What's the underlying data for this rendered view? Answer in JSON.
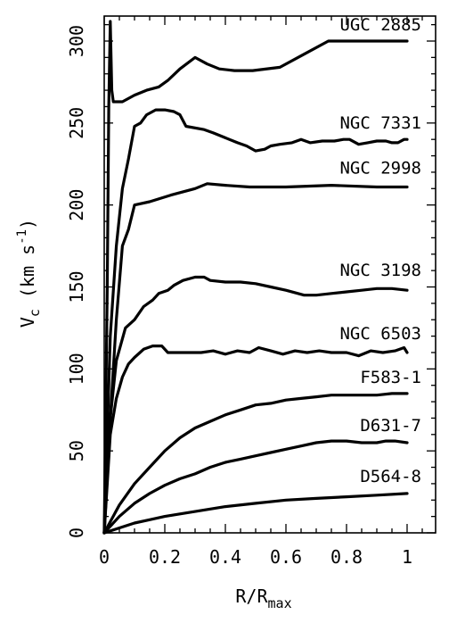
{
  "chart_data": {
    "type": "line",
    "xlabel": {
      "main": "R/R",
      "sub": "max"
    },
    "ylabel": {
      "main": "V",
      "sub": "c",
      "rest": " (km s",
      "sup": "-1",
      "close": ")"
    },
    "xlim": [
      0,
      1.1
    ],
    "ylim": [
      0,
      320
    ],
    "xticks": [
      0,
      0.2,
      0.4,
      0.6,
      0.8,
      1
    ],
    "xtick_labels": [
      "0",
      "0.2",
      "0.4",
      "0.6",
      "0.8",
      "1"
    ],
    "yticks": [
      0,
      50,
      100,
      150,
      200,
      250,
      300
    ],
    "ytick_labels": [
      "0",
      "50",
      "100",
      "150",
      "200",
      "250",
      "300"
    ],
    "series": [
      {
        "name": "UGC 2885",
        "x": [
          0,
          0.01,
          0.015,
          0.02,
          0.025,
          0.03,
          0.04,
          0.06,
          0.1,
          0.14,
          0.18,
          0.21,
          0.25,
          0.3,
          0.34,
          0.38,
          0.43,
          0.49,
          0.58,
          0.66,
          0.74,
          0.85,
          1.0
        ],
        "y": [
          0,
          150,
          260,
          312,
          270,
          263,
          263,
          263,
          267,
          270,
          272,
          276,
          283,
          290,
          286,
          283,
          282,
          282,
          284,
          292,
          300,
          300,
          300
        ]
      },
      {
        "name": "NGC 7331",
        "x": [
          0,
          0.02,
          0.04,
          0.06,
          0.08,
          0.1,
          0.12,
          0.14,
          0.17,
          0.2,
          0.23,
          0.25,
          0.27,
          0.33,
          0.36,
          0.4,
          0.44,
          0.47,
          0.5,
          0.53,
          0.55,
          0.58,
          0.62,
          0.65,
          0.68,
          0.72,
          0.76,
          0.79,
          0.81,
          0.84,
          0.87,
          0.9,
          0.93,
          0.95,
          0.97,
          0.99,
          1.0
        ],
        "y": [
          0,
          120,
          175,
          210,
          228,
          248,
          250,
          255,
          258,
          258,
          257,
          255,
          248,
          246,
          244,
          241,
          238,
          236,
          233,
          234,
          236,
          237,
          238,
          240,
          238,
          239,
          239,
          240,
          240,
          237,
          238,
          239,
          239,
          238,
          238,
          240,
          240
        ]
      },
      {
        "name": "NGC 2998",
        "x": [
          0,
          0.02,
          0.04,
          0.06,
          0.08,
          0.1,
          0.15,
          0.22,
          0.3,
          0.34,
          0.4,
          0.48,
          0.6,
          0.75,
          0.9,
          1.0
        ],
        "y": [
          0,
          70,
          130,
          175,
          185,
          200,
          202,
          206,
          210,
          213,
          212,
          211,
          211,
          212,
          211,
          211
        ]
      },
      {
        "name": "NGC 3198",
        "x": [
          0,
          0.02,
          0.04,
          0.07,
          0.1,
          0.13,
          0.16,
          0.18,
          0.21,
          0.23,
          0.26,
          0.3,
          0.33,
          0.35,
          0.4,
          0.45,
          0.5,
          0.55,
          0.6,
          0.66,
          0.7,
          0.75,
          0.8,
          0.85,
          0.9,
          0.95,
          1.0
        ],
        "y": [
          0,
          70,
          105,
          125,
          130,
          138,
          142,
          146,
          148,
          151,
          154,
          156,
          156,
          154,
          153,
          153,
          152,
          150,
          148,
          145,
          145,
          146,
          147,
          148,
          149,
          149,
          148
        ]
      },
      {
        "name": "NGC 6503",
        "x": [
          0,
          0.02,
          0.04,
          0.06,
          0.08,
          0.1,
          0.13,
          0.16,
          0.19,
          0.21,
          0.23,
          0.27,
          0.32,
          0.36,
          0.4,
          0.44,
          0.48,
          0.51,
          0.55,
          0.59,
          0.63,
          0.67,
          0.71,
          0.75,
          0.8,
          0.84,
          0.88,
          0.92,
          0.96,
          0.99,
          1.0
        ],
        "y": [
          0,
          60,
          82,
          95,
          103,
          107,
          112,
          114,
          114,
          110,
          110,
          110,
          110,
          111,
          109,
          111,
          110,
          113,
          111,
          109,
          111,
          110,
          111,
          110,
          110,
          108,
          111,
          110,
          111,
          113,
          110
        ]
      },
      {
        "name": "F583-1",
        "x": [
          0,
          0.05,
          0.1,
          0.15,
          0.2,
          0.25,
          0.3,
          0.35,
          0.4,
          0.45,
          0.5,
          0.55,
          0.6,
          0.65,
          0.7,
          0.75,
          0.8,
          0.85,
          0.9,
          0.95,
          1.0
        ],
        "y": [
          0,
          17,
          30,
          40,
          50,
          58,
          64,
          68,
          72,
          75,
          78,
          79,
          81,
          82,
          83,
          84,
          84,
          84,
          84,
          85,
          85
        ]
      },
      {
        "name": "D631-7",
        "x": [
          0,
          0.05,
          0.1,
          0.15,
          0.2,
          0.25,
          0.3,
          0.35,
          0.4,
          0.45,
          0.5,
          0.55,
          0.6,
          0.65,
          0.7,
          0.75,
          0.8,
          0.85,
          0.88,
          0.9,
          0.93,
          0.96,
          1.0
        ],
        "y": [
          0,
          10,
          18,
          24,
          29,
          33,
          36,
          40,
          43,
          45,
          47,
          49,
          51,
          53,
          55,
          56,
          56,
          55,
          55,
          55,
          56,
          56,
          55
        ]
      },
      {
        "name": "D564-8",
        "x": [
          0,
          0.05,
          0.1,
          0.15,
          0.2,
          0.3,
          0.4,
          0.5,
          0.6,
          0.7,
          0.8,
          0.9,
          1.0
        ],
        "y": [
          0,
          3,
          6,
          8,
          10,
          13,
          16,
          18,
          20,
          21,
          22,
          23,
          24
        ]
      }
    ]
  }
}
